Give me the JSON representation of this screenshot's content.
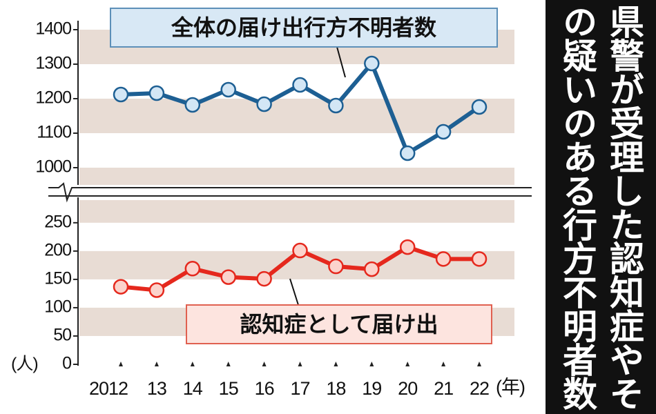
{
  "title": "県警が受理した認知症やその疑いのある行方不明者数",
  "chart_data": [
    {
      "type": "line",
      "ylim": [
        950,
        1400
      ],
      "yticks": [
        1000,
        1100,
        1200,
        1300,
        1400
      ],
      "series": [
        {
          "name": "全体の届け出行方不明者数",
          "color": "#1d5f93",
          "marker_fill": "#d3e6f5",
          "values": [
            1212,
            1216,
            1182,
            1226,
            1184,
            1240,
            1180,
            1302,
            1042,
            1104,
            1176
          ]
        }
      ]
    },
    {
      "type": "line",
      "ylim": [
        0,
        290
      ],
      "yticks": [
        0,
        50,
        100,
        150,
        200,
        250
      ],
      "categories": [
        "2012",
        "13",
        "14",
        "15",
        "16",
        "17",
        "18",
        "19",
        "20",
        "21",
        "22"
      ],
      "x_unit": "(年)",
      "y_unit": "(人)",
      "series": [
        {
          "name": "認知症として届け出",
          "color": "#e5281d",
          "marker_fill": "#fbd3cc",
          "values": [
            137,
            131,
            169,
            154,
            151,
            201,
            173,
            168,
            207,
            186,
            186
          ]
        }
      ]
    }
  ]
}
